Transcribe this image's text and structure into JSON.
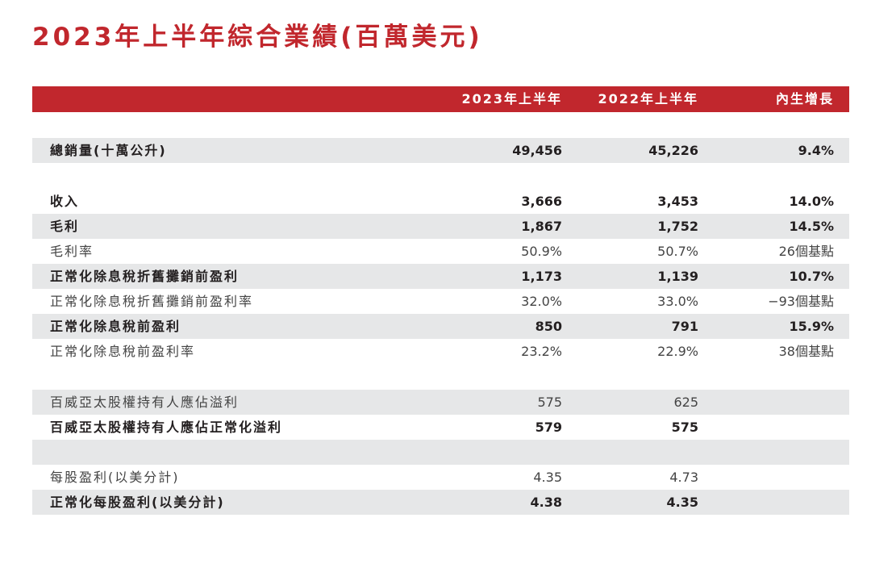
{
  "title": "2023年上半年綜合業績(百萬美元)",
  "header": {
    "col1": "2023年上半年",
    "col2": "2022年上半年",
    "col3": "內生增長"
  },
  "rows": {
    "volume": {
      "label": "總銷量(十萬公升)",
      "v1": "49,456",
      "v2": "45,226",
      "v3": "9.4%"
    },
    "revenue": {
      "label": "收入",
      "v1": "3,666",
      "v2": "3,453",
      "v3": "14.0%"
    },
    "gross_profit": {
      "label": "毛利",
      "v1": "1,867",
      "v2": "1,752",
      "v3": "14.5%"
    },
    "gross_margin": {
      "label": "毛利率",
      "v1": "50.9%",
      "v2": "50.7%",
      "v3": "26個基點"
    },
    "ebitda": {
      "label": "正常化除息稅折舊攤銷前盈利",
      "v1": "1,173",
      "v2": "1,139",
      "v3": "10.7%"
    },
    "ebitda_margin": {
      "label": "正常化除息稅折舊攤銷前盈利率",
      "v1": "32.0%",
      "v2": "33.0%",
      "v3": "−93個基點"
    },
    "ebit": {
      "label": "正常化除息稅前盈利",
      "v1": "850",
      "v2": "791",
      "v3": "15.9%"
    },
    "ebit_margin": {
      "label": "正常化除息稅前盈利率",
      "v1": "23.2%",
      "v2": "22.9%",
      "v3": "38個基點"
    },
    "profit": {
      "label": "百威亞太股權持有人應佔溢利",
      "v1": "575",
      "v2": "625",
      "v3": ""
    },
    "normalized_profit": {
      "label": "百威亞太股權持有人應佔正常化溢利",
      "v1": "579",
      "v2": "575",
      "v3": ""
    },
    "eps": {
      "label": "每股盈利(以美分計)",
      "v1": "4.35",
      "v2": "4.73",
      "v3": ""
    },
    "normalized_eps": {
      "label": "正常化每股盈利(以美分計)",
      "v1": "4.38",
      "v2": "4.35",
      "v3": ""
    }
  },
  "colors": {
    "accent": "#c1272d",
    "row_shade": "#e6e7e8"
  }
}
